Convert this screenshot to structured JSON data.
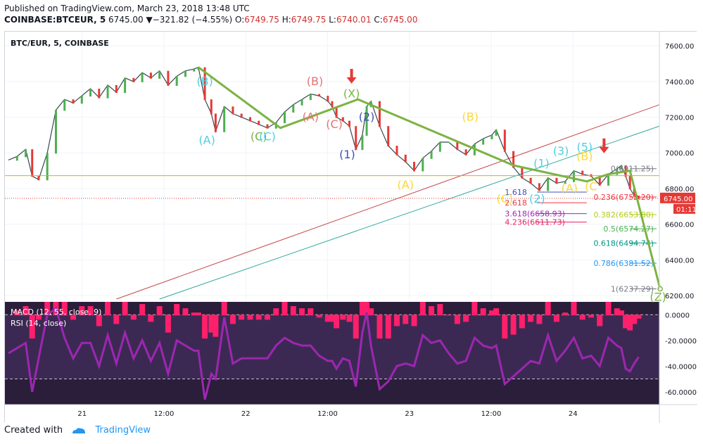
{
  "header": {
    "published": "Published on TradingView.com, March 23, 2018 13:48 UTC",
    "symbol": "COINBASE:BTCEUR, 5",
    "last": "6745.00",
    "change": "▼−321.82 (−4.55%)",
    "o_label": "O:",
    "o": "6749.75",
    "h_label": "H:",
    "h": "6749.75",
    "l_label": "L:",
    "l": "6740.01",
    "c_label": "C:",
    "c": "6745.00"
  },
  "footer": {
    "created": "Created with",
    "brand": "TradingView"
  },
  "colors": {
    "up": "#4caf50",
    "down": "#e53935",
    "zigzag": "#7cb342",
    "macd_hist": "#ff1f6b",
    "rsi": "#9c27b0",
    "rsi_band": "#d1c4e9"
  },
  "chart_data": {
    "type": "line",
    "title": "BTC/EUR, 5, COINBASE",
    "xlabel": "",
    "ylabel": "",
    "x_ticks": [
      "21",
      "12:00",
      "22",
      "12:00",
      "23",
      "12:00",
      "24"
    ],
    "y_ticks": [
      7600,
      7400,
      7200,
      7000,
      6800,
      6600,
      6400,
      6200
    ],
    "ylim": [
      6180,
      7660
    ],
    "price_path": [
      [
        0,
        6960
      ],
      [
        4,
        6980
      ],
      [
        8,
        7020
      ],
      [
        11,
        6870
      ],
      [
        14,
        6850
      ],
      [
        18,
        7000
      ],
      [
        22,
        7240
      ],
      [
        26,
        7300
      ],
      [
        30,
        7280
      ],
      [
        34,
        7320
      ],
      [
        38,
        7360
      ],
      [
        42,
        7310
      ],
      [
        46,
        7380
      ],
      [
        50,
        7340
      ],
      [
        54,
        7420
      ],
      [
        58,
        7400
      ],
      [
        62,
        7450
      ],
      [
        66,
        7420
      ],
      [
        70,
        7460
      ],
      [
        74,
        7380
      ],
      [
        78,
        7430
      ],
      [
        82,
        7460
      ],
      [
        86,
        7470
      ],
      [
        88,
        7480
      ],
      [
        91,
        7300
      ],
      [
        94,
        7220
      ],
      [
        96,
        7120
      ],
      [
        100,
        7260
      ],
      [
        104,
        7220
      ],
      [
        108,
        7200
      ],
      [
        112,
        7180
      ],
      [
        116,
        7160
      ],
      [
        120,
        7140
      ],
      [
        124,
        7170
      ],
      [
        128,
        7230
      ],
      [
        132,
        7270
      ],
      [
        136,
        7300
      ],
      [
        140,
        7330
      ],
      [
        144,
        7320
      ],
      [
        148,
        7290
      ],
      [
        150,
        7260
      ],
      [
        152,
        7200
      ],
      [
        155,
        7180
      ],
      [
        158,
        7150
      ],
      [
        161,
        7020
      ],
      [
        164,
        7100
      ],
      [
        166,
        7260
      ],
      [
        168,
        7290
      ],
      [
        172,
        7150
      ],
      [
        176,
        7040
      ],
      [
        180,
        6990
      ],
      [
        184,
        6950
      ],
      [
        188,
        6900
      ],
      [
        192,
        6970
      ],
      [
        196,
        7010
      ],
      [
        200,
        7060
      ],
      [
        204,
        7060
      ],
      [
        208,
        7020
      ],
      [
        212,
        6990
      ],
      [
        216,
        7050
      ],
      [
        220,
        7080
      ],
      [
        224,
        7100
      ],
      [
        226,
        7130
      ],
      [
        230,
        7010
      ],
      [
        234,
        6920
      ],
      [
        238,
        6860
      ],
      [
        242,
        6830
      ],
      [
        246,
        6790
      ],
      [
        250,
        6860
      ],
      [
        254,
        6830
      ],
      [
        258,
        6840
      ],
      [
        262,
        6900
      ],
      [
        266,
        6880
      ],
      [
        270,
        6870
      ],
      [
        274,
        6820
      ],
      [
        278,
        6880
      ],
      [
        282,
        6910
      ],
      [
        284,
        6930
      ],
      [
        286,
        6870
      ],
      [
        288,
        6800
      ],
      [
        290,
        6760
      ],
      [
        292,
        6745
      ]
    ],
    "x_range": [
      0,
      300
    ],
    "fib_levels": [
      {
        "label": "0(6911.25)",
        "value": 6911.25,
        "color": "#787b86"
      },
      {
        "label": "0.236(6752.20)",
        "value": 6752.2,
        "color": "#f23645"
      },
      {
        "label": "0.382(6653.80)",
        "value": 6653.8,
        "color": "#b5cc18"
      },
      {
        "label": "0.5(6574.27)",
        "value": 6574.27,
        "color": "#4caf50"
      },
      {
        "label": "0.618(6494.74)",
        "value": 6494.74,
        "color": "#009688"
      },
      {
        "label": "0.786(6381.52)",
        "value": 6381.52,
        "color": "#2196f3"
      },
      {
        "label": "1(6237.29)",
        "value": 6237.29,
        "color": "#787b86"
      }
    ],
    "ext_levels": [
      {
        "label": "1.618",
        "value": 6780,
        "color": "#3f51b5"
      },
      {
        "label": "2.618",
        "value": 6720,
        "color": "#f23645"
      },
      {
        "label": "3.618(6658.93)",
        "value": 6658.93,
        "color": "#9c27b0"
      },
      {
        "label": "4.236(6611.73)",
        "value": 6611.73,
        "color": "#e91e63"
      }
    ],
    "horizontal_line": {
      "value": 6872,
      "color": "#d4b106"
    },
    "price_tag": {
      "label": "6745.00",
      "value": 6745.0,
      "countdown": "01:11",
      "color": "#e53935"
    },
    "zigzag": [
      [
        88,
        7480
      ],
      [
        126,
        7140
      ],
      [
        162,
        7300
      ],
      [
        234,
        6930
      ],
      [
        268,
        6840
      ],
      [
        278,
        6880
      ],
      [
        288,
        6900
      ],
      [
        302,
        6237
      ]
    ],
    "wave_labels": [
      {
        "text": "(B)",
        "x": 91,
        "y": 7380,
        "color": "#4dd0e1"
      },
      {
        "text": "(A)",
        "x": 92,
        "y": 7050,
        "color": "#4dd0e1"
      },
      {
        "text": "(C)",
        "x": 116,
        "y": 7070,
        "color": "#7cb342"
      },
      {
        "text": "(C)",
        "x": 120,
        "y": 7070,
        "color": "#4dd0e1"
      },
      {
        "text": "(B)",
        "x": 142,
        "y": 7380,
        "color": "#e57373"
      },
      {
        "text": "(A)",
        "x": 140,
        "y": 7180,
        "color": "#e57373"
      },
      {
        "text": "(C)",
        "x": 151,
        "y": 7140,
        "color": "#e57373"
      },
      {
        "text": "(X)",
        "x": 159,
        "y": 7310,
        "color": "#7cb342"
      },
      {
        "text": "(1)",
        "x": 157,
        "y": 6970,
        "color": "#3f51b5"
      },
      {
        "text": "(2)",
        "x": 166,
        "y": 7180,
        "color": "#3f51b5"
      },
      {
        "text": "(A)",
        "x": 184,
        "y": 6800,
        "color": "#fdd835"
      },
      {
        "text": "(B)",
        "x": 214,
        "y": 7180,
        "color": "#fdd835"
      },
      {
        "text": "(C)",
        "x": 230,
        "y": 6720,
        "color": "#fdd835"
      },
      {
        "text": "(1)",
        "x": 247,
        "y": 6920,
        "color": "#4dd0e1"
      },
      {
        "text": "(2)",
        "x": 245,
        "y": 6720,
        "color": "#4dd0e1"
      },
      {
        "text": "(3)",
        "x": 256,
        "y": 6990,
        "color": "#4dd0e1"
      },
      {
        "text": "(A)",
        "x": 260,
        "y": 6780,
        "color": "#fdd835"
      },
      {
        "text": "(5)",
        "x": 267,
        "y": 7010,
        "color": "#4dd0e1"
      },
      {
        "text": "(B)",
        "x": 267,
        "y": 6960,
        "color": "#fdd835"
      },
      {
        "text": "(C",
        "x": 270,
        "y": 6790,
        "color": "#fdd835"
      },
      {
        "text": "(Z)",
        "x": 301,
        "y": 6170,
        "color": "#7cb342"
      }
    ],
    "arrows": [
      [
        159,
        7400
      ],
      [
        276,
        7010
      ]
    ],
    "indicators": [
      {
        "name": "MACD (12, 55, close, 9)"
      },
      {
        "name": "RSI (14, close)"
      }
    ],
    "osc_ticks": [
      "0.0000",
      "-20.0000",
      "-40.0000",
      "-60.0000"
    ],
    "osc_ylim": [
      -70,
      10
    ]
  }
}
